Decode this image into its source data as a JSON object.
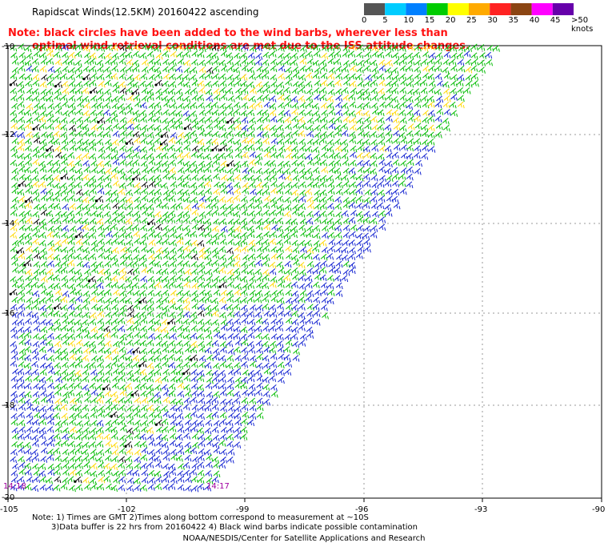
{
  "title": "Rapidscat Winds(12.5KM) 20160422 ascending",
  "note": {
    "line1": "Note: black circles have been added to the wind barbs, wherever less than",
    "line2": "optimal wind retrieval conditions are met due to the ISS attitude changes."
  },
  "colorbar": {
    "labels": [
      "0",
      "5",
      "10",
      "15",
      "20",
      "25",
      "30",
      "35",
      "40",
      "45",
      ">50 knots"
    ],
    "colors": [
      "#555555",
      "#00ccff",
      "#0080ff",
      "#00cc00",
      "#ffff00",
      "#ffaa00",
      "#ff2222",
      "#8b4513",
      "#ff00ff",
      "#6600aa"
    ]
  },
  "map": {
    "lat_labels": [
      "-10",
      "-12",
      "-14",
      "-16",
      "-18",
      "-20"
    ],
    "lon_labels": [
      "-105",
      "-102",
      "-99",
      "-96",
      "-93",
      "-90"
    ],
    "time_labels": [
      "14:18",
      "14:17"
    ],
    "barb_colors": {
      "green": "#00bb00",
      "yellow": "#ffd800",
      "blue": "#1020d0",
      "black": "#000000"
    }
  },
  "footnote": {
    "line1": "Note: 1) Times are GMT 2)Times along bottom correspond to measurement at ~10S",
    "line2": "3)Data buffer is 22 hrs from 20160422 4) Black wind barbs indicate possible contamination"
  },
  "credit": "NOAA/NESDIS/Center for Satellite Applications and Research"
}
